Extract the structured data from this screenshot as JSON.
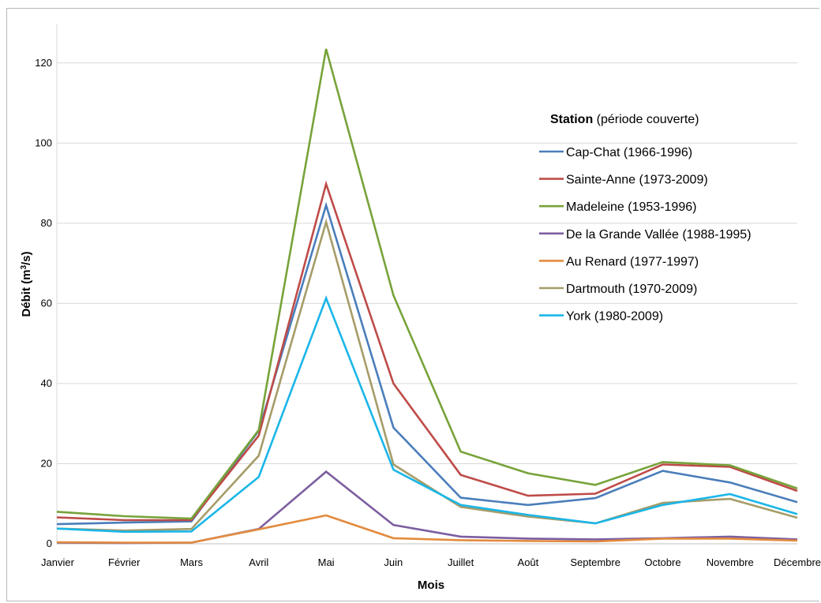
{
  "chart_data": {
    "type": "line",
    "title": "",
    "xlabel": "Mois",
    "ylabel_main": "Débit (m",
    "ylabel_sup": "3",
    "ylabel_end": "/s)",
    "ylim": [
      0,
      130
    ],
    "yticks": [
      "0",
      "20",
      "40",
      "60",
      "80",
      "100",
      "120"
    ],
    "ytick_values": [
      0,
      20,
      40,
      60,
      80,
      100,
      120
    ],
    "grid": true,
    "legend_placement": "right",
    "legend_title_bold": "Station",
    "legend_title_rest": " (période couverte)",
    "categories": [
      "Janvier",
      "Février",
      "Mars",
      "Avril",
      "Mai",
      "Juin",
      "Juillet",
      "Août",
      "Septembre",
      "Octobre",
      "Novembre",
      "Décembre"
    ],
    "series": [
      {
        "name": "Cap-Chat (1966-1996)",
        "color": "#4a7ebb",
        "values": [
          4.9,
          5.3,
          5.6,
          28.2,
          84.5,
          29.0,
          11.5,
          9.7,
          11.4,
          18.2,
          15.3,
          10.4
        ]
      },
      {
        "name": "Sainte-Anne (1973-2009)",
        "color": "#be4b48",
        "values": [
          6.6,
          5.9,
          5.9,
          27.0,
          89.8,
          40.0,
          17.2,
          12.0,
          12.5,
          19.8,
          19.2,
          13.2
        ]
      },
      {
        "name": "Madeleine (1953-1996)",
        "color": "#77a33a",
        "values": [
          8.0,
          6.9,
          6.3,
          28.4,
          123.5,
          62.0,
          23.0,
          17.6,
          14.7,
          20.4,
          19.6,
          13.8
        ]
      },
      {
        "name": "De la Grande Vallée (1988-1995)",
        "color": "#7c5ea0",
        "values": [
          0.3,
          0.2,
          0.3,
          3.7,
          18.0,
          4.7,
          1.8,
          1.3,
          1.1,
          1.4,
          1.8,
          1.1
        ]
      },
      {
        "name": "Au Renard (1977-1997)",
        "color": "#e38b3e",
        "values": [
          0.4,
          0.3,
          0.3,
          3.6,
          7.1,
          1.4,
          0.9,
          0.7,
          0.6,
          1.3,
          1.3,
          0.8
        ]
      },
      {
        "name": "Dartmouth (1970-2009)",
        "color": "#a69c68",
        "values": [
          3.8,
          3.3,
          3.7,
          22.0,
          80.3,
          19.8,
          9.2,
          6.8,
          5.1,
          10.2,
          11.2,
          6.5
        ]
      },
      {
        "name": "York (1980-2009)",
        "color": "#1ab6e8",
        "values": [
          3.8,
          3.0,
          3.1,
          16.7,
          61.3,
          18.5,
          9.7,
          7.2,
          5.1,
          9.7,
          12.4,
          7.4
        ]
      }
    ]
  }
}
